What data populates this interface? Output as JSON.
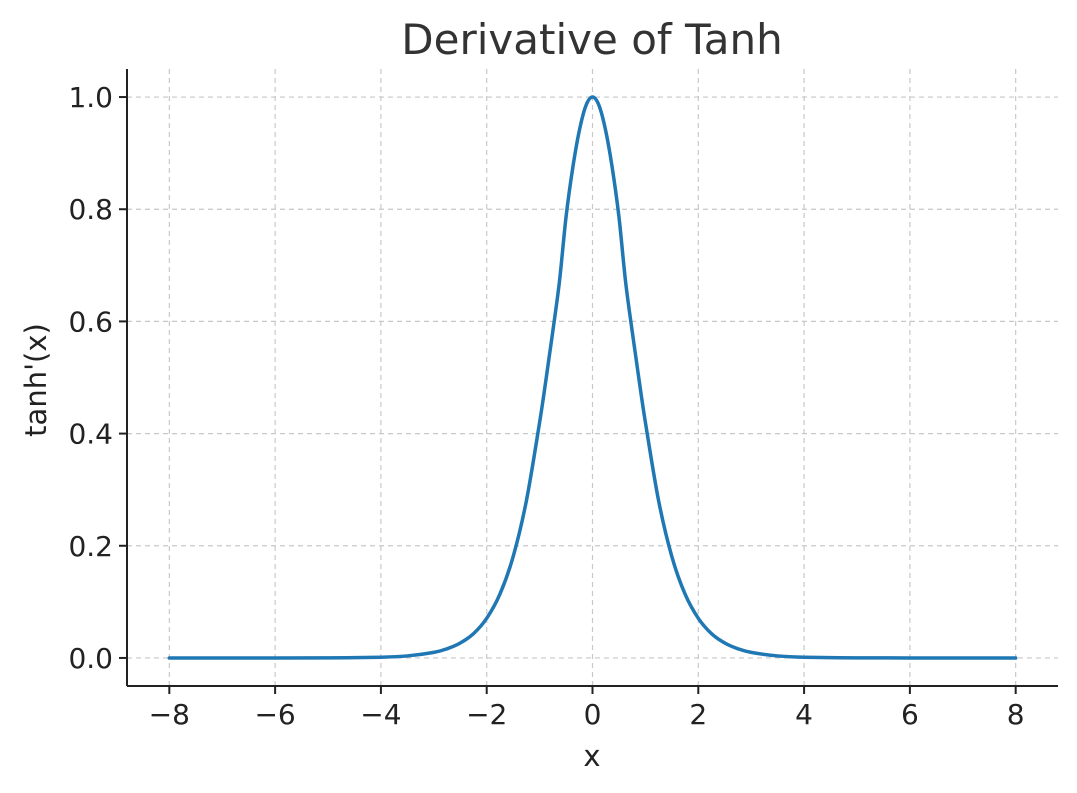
{
  "chart_data": {
    "type": "line",
    "title": "Derivative of Tanh",
    "xlabel": "x",
    "ylabel": "tanh'(x)",
    "xlim": [
      -8.8,
      8.8
    ],
    "ylim": [
      -0.05,
      1.05
    ],
    "x_ticks": [
      -8,
      -6,
      -4,
      -2,
      0,
      2,
      4,
      6,
      8
    ],
    "x_tick_labels": [
      "−8",
      "−6",
      "−4",
      "−2",
      "0",
      "2",
      "4",
      "6",
      "8"
    ],
    "y_ticks": [
      0.0,
      0.2,
      0.4,
      0.6,
      0.8,
      1.0
    ],
    "y_tick_labels": [
      "0.0",
      "0.2",
      "0.4",
      "0.6",
      "0.8",
      "1.0"
    ],
    "grid": true,
    "series": [
      {
        "color": "#1f77b4",
        "x": [
          -8,
          -7,
          -6,
          -5,
          -4,
          -3.5,
          -3,
          -2.75,
          -2.5,
          -2.25,
          -2,
          -1.75,
          -1.5,
          -1.25,
          -1,
          -0.875,
          -0.75,
          -0.625,
          -0.5,
          -0.375,
          -0.25,
          -0.125,
          0,
          0.125,
          0.25,
          0.375,
          0.5,
          0.625,
          0.75,
          0.875,
          1,
          1.25,
          1.5,
          1.75,
          2,
          2.25,
          2.5,
          2.75,
          3,
          3.5,
          4,
          5,
          6,
          7,
          8
        ],
        "y": [
          0.0,
          0.0,
          0.0,
          0.0002,
          0.0013,
          0.0036,
          0.0099,
          0.0163,
          0.0266,
          0.0433,
          0.0707,
          0.1138,
          0.1807,
          0.2802,
          0.42,
          0.4992,
          0.5827,
          0.6711,
          0.7864,
          0.8727,
          0.9397,
          0.9845,
          1.0,
          0.9845,
          0.9397,
          0.8727,
          0.7864,
          0.6711,
          0.5827,
          0.4992,
          0.42,
          0.2802,
          0.1807,
          0.1138,
          0.0707,
          0.0433,
          0.0266,
          0.0163,
          0.0099,
          0.0036,
          0.0013,
          0.0002,
          0.0,
          0.0,
          0.0
        ]
      }
    ]
  }
}
